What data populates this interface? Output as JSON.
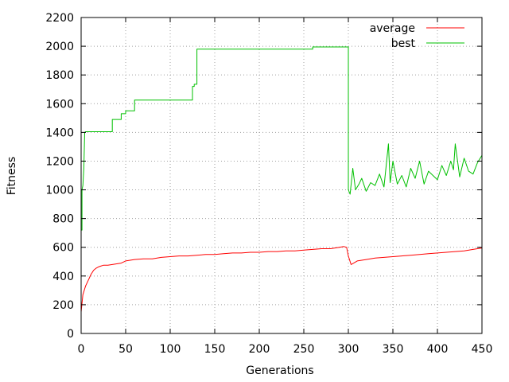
{
  "chart_data": {
    "type": "line",
    "xlabel": "Generations",
    "ylabel": "Fitness",
    "xlim": [
      0,
      450
    ],
    "ylim": [
      0,
      2200
    ],
    "xticks": [
      0,
      50,
      100,
      150,
      200,
      250,
      300,
      350,
      400,
      450
    ],
    "yticks": [
      0,
      200,
      400,
      600,
      800,
      1000,
      1200,
      1400,
      1600,
      1800,
      2000,
      2200
    ],
    "grid": true,
    "legend_position": "top-right",
    "series": [
      {
        "name": "average",
        "color": "#ff0000",
        "x": [
          0,
          2,
          5,
          8,
          11,
          14,
          17,
          20,
          25,
          30,
          35,
          40,
          45,
          50,
          55,
          60,
          70,
          80,
          90,
          100,
          110,
          120,
          130,
          140,
          150,
          160,
          170,
          180,
          190,
          200,
          210,
          220,
          230,
          240,
          250,
          260,
          270,
          280,
          290,
          295,
          298,
          300,
          303,
          306,
          310,
          320,
          330,
          340,
          350,
          360,
          370,
          380,
          390,
          400,
          410,
          420,
          430,
          440,
          450
        ],
        "y": [
          150,
          270,
          330,
          370,
          410,
          440,
          455,
          465,
          475,
          475,
          480,
          485,
          490,
          505,
          510,
          515,
          520,
          520,
          530,
          535,
          540,
          540,
          545,
          550,
          550,
          555,
          560,
          560,
          565,
          565,
          570,
          570,
          575,
          575,
          580,
          585,
          590,
          590,
          600,
          605,
          600,
          540,
          480,
          490,
          505,
          515,
          525,
          530,
          535,
          540,
          545,
          550,
          555,
          560,
          565,
          570,
          575,
          585,
          595
        ]
      },
      {
        "name": "best",
        "color": "#00c000",
        "x": [
          0,
          1,
          1,
          2,
          3,
          4,
          5,
          35,
          35,
          45,
          45,
          50,
          50,
          60,
          60,
          125,
          125,
          127,
          127,
          130,
          130,
          260,
          260,
          300,
          300,
          302,
          305,
          308,
          312,
          315,
          320,
          325,
          330,
          335,
          340,
          345,
          347,
          350,
          355,
          360,
          365,
          370,
          375,
          380,
          385,
          390,
          395,
          400,
          405,
          410,
          415,
          418,
          420,
          425,
          430,
          435,
          440,
          445,
          450
        ],
        "y": [
          720,
          720,
          1000,
          1030,
          1150,
          1400,
          1405,
          1405,
          1490,
          1490,
          1530,
          1530,
          1550,
          1550,
          1625,
          1625,
          1720,
          1720,
          1735,
          1735,
          1980,
          1980,
          1995,
          1995,
          1000,
          970,
          1150,
          1000,
          1040,
          1080,
          990,
          1050,
          1030,
          1110,
          1020,
          1320,
          1050,
          1200,
          1040,
          1100,
          1020,
          1150,
          1080,
          1200,
          1040,
          1130,
          1100,
          1070,
          1170,
          1100,
          1200,
          1140,
          1320,
          1090,
          1220,
          1130,
          1110,
          1190,
          1240
        ]
      }
    ]
  }
}
